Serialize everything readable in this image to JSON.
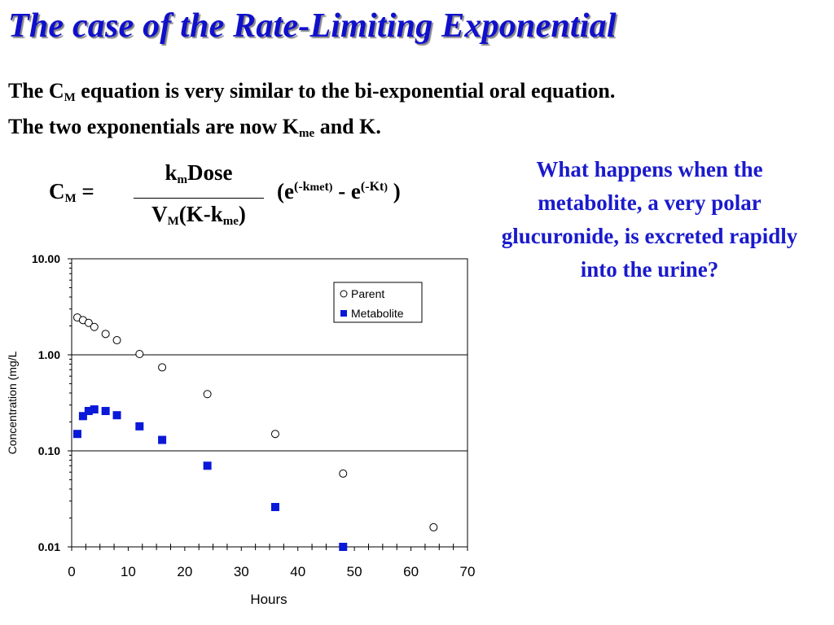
{
  "slide": {
    "title": "The case of the Rate-Limiting Exponential",
    "line1_a": "The C",
    "line1_sub": "M",
    "line1_b": " equation is very similar to the bi-exponential oral equation.",
    "line2_a": "The two exponentials are now K",
    "line2_sub": "me",
    "line2_b": " and K.",
    "question": "What happens when the metabolite, a very polar glucuronide, is excreted rapidly into the urine?"
  },
  "equation": {
    "lhs": "C",
    "lhs_sub": "M",
    "lhs_eq": " =",
    "num_a": "k",
    "num_sub": "m",
    "num_b": "Dose",
    "den_a": "V",
    "den_sub1": "M",
    "den_b": "(K-k",
    "den_sub2": "me",
    "den_c": ")",
    "rhs_a": "(e",
    "rhs_sup1_a": "(-k",
    "rhs_sup1_sub": "me",
    "rhs_sup1_b": "t",
    "rhs_sup1_c": ")",
    "rhs_b": " - e",
    "rhs_sup2_a": "(-Kt",
    "rhs_sup2_b": ")",
    "rhs_c": " )"
  },
  "colors": {
    "title": "#1010cc",
    "question": "#1a1acc",
    "metabolite": "#0a18d8"
  },
  "chart_data": {
    "type": "scatter",
    "xlabel": "Hours",
    "ylabel": "Concentration (mg/L",
    "xlim": [
      0,
      70
    ],
    "ylim": [
      0.01,
      10
    ],
    "yscale": "log",
    "xticks": [
      "0",
      "10",
      "20",
      "30",
      "40",
      "50",
      "60",
      "70"
    ],
    "yticks": [
      "10.00",
      "1.00",
      "0.10",
      "0.01"
    ],
    "legend_position": "top-right",
    "series": [
      {
        "name": "Parent",
        "marker": "open-circle",
        "x": [
          1,
          2,
          3,
          4,
          6,
          8,
          12,
          16,
          24,
          36,
          48,
          64
        ],
        "y": [
          2.45,
          2.3,
          2.15,
          1.95,
          1.65,
          1.42,
          1.02,
          0.74,
          0.39,
          0.15,
          0.058,
          0.016
        ]
      },
      {
        "name": "Metabolite",
        "marker": "filled-square",
        "x": [
          1,
          2,
          3,
          4,
          6,
          8,
          12,
          16,
          24,
          36,
          48
        ],
        "y": [
          0.15,
          0.23,
          0.26,
          0.27,
          0.26,
          0.235,
          0.18,
          0.13,
          0.07,
          0.026,
          0.01
        ]
      }
    ]
  }
}
